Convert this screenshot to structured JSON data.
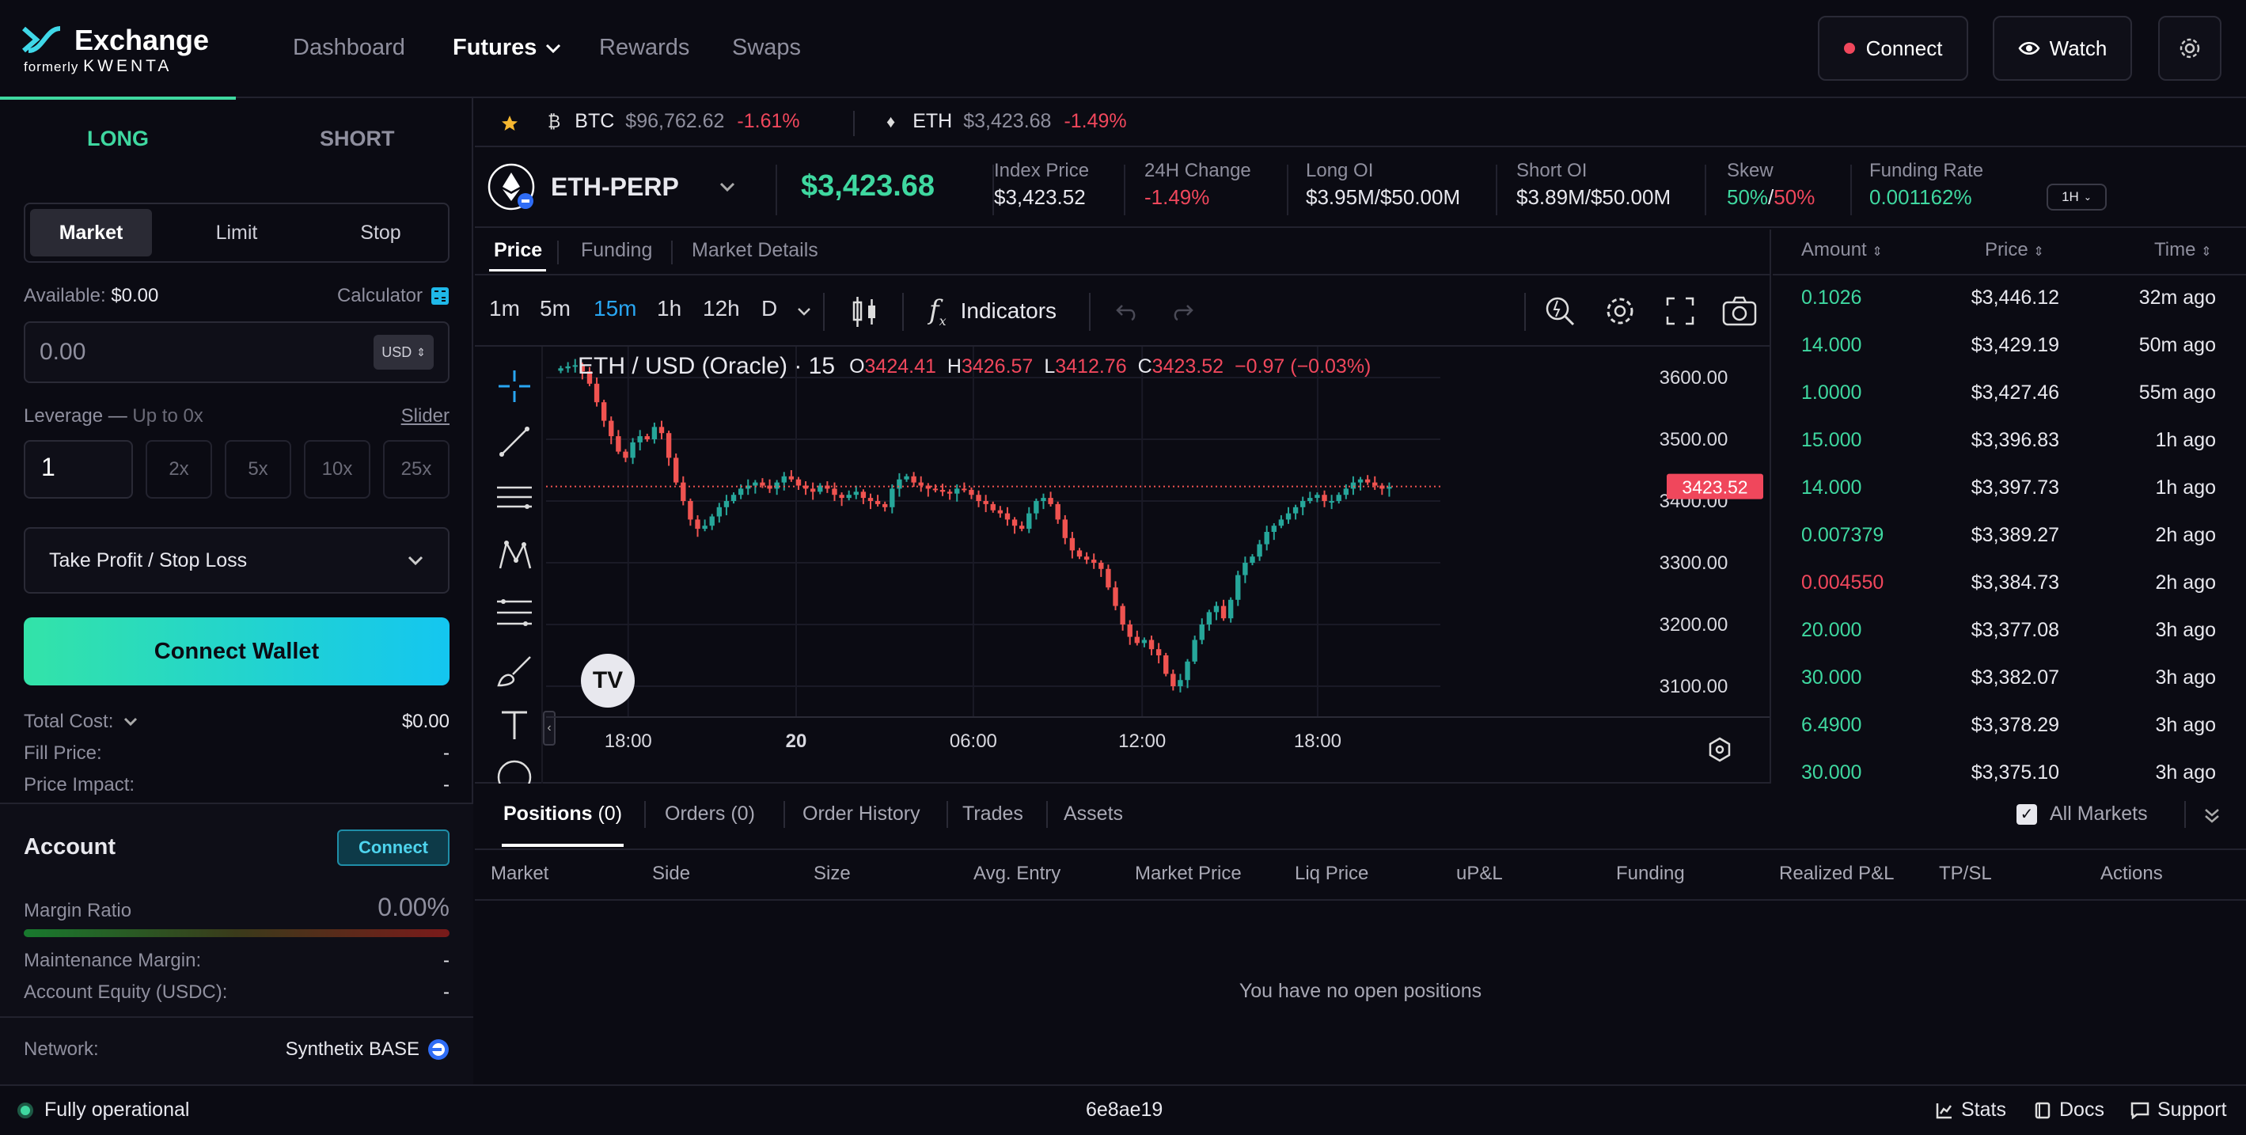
{
  "header": {
    "logo_text": "Exchange",
    "logo_sub_prefix": "formerly",
    "logo_sub_brand": "KWENTA",
    "nav": [
      "Dashboard",
      "Futures",
      "Rewards",
      "Swaps"
    ],
    "connect_label": "Connect",
    "watch_label": "Watch"
  },
  "left_panel": {
    "tab_long": "LONG",
    "tab_short": "SHORT",
    "order_types": [
      "Market",
      "Limit",
      "Stop"
    ],
    "available_label": "Available:",
    "available_value": "$0.00",
    "calculator_label": "Calculator",
    "amount_placeholder": "0.00",
    "currency": "USD",
    "leverage_label": "Leverage",
    "leverage_sep": "—",
    "leverage_hint": "Up to 0x",
    "slider_link": "Slider",
    "leverage_value": "1",
    "leverage_presets": [
      "2x",
      "5x",
      "10x",
      "25x"
    ],
    "tpsl_label": "Take Profit / Stop Loss",
    "connect_wallet": "Connect Wallet",
    "total_cost_label": "Total Cost:",
    "total_cost_value": "$0.00",
    "fill_price_label": "Fill Price:",
    "fill_price_value": "-",
    "price_impact_label": "Price Impact:",
    "price_impact_value": "-",
    "account_title": "Account",
    "account_connect": "Connect",
    "margin_ratio_label": "Margin Ratio",
    "margin_ratio_value": "0.00%",
    "maint_margin_label": "Maintenance Margin:",
    "maint_margin_value": "-",
    "account_equity_label": "Account Equity (USDC):",
    "account_equity_value": "-",
    "network_label": "Network:",
    "network_value": "Synthetix BASE"
  },
  "strip": {
    "items": [
      {
        "symbol": "BTC",
        "price": "$96,762.62",
        "change": "-1.61%"
      },
      {
        "symbol": "ETH",
        "price": "$3,423.68",
        "change": "-1.49%"
      }
    ]
  },
  "market": {
    "name": "ETH-PERP",
    "price": "$3,423.68",
    "stats": [
      {
        "label": "Index Price",
        "value": "$3,423.52"
      },
      {
        "label": "24H Change",
        "value": "-1.49%"
      },
      {
        "label": "Long OI",
        "value": "$3.95M/$50.00M"
      },
      {
        "label": "Short OI",
        "value": "$3.89M/$50.00M"
      }
    ],
    "skew_label": "Skew",
    "skew_long": "50%",
    "skew_sep": "/",
    "skew_short": "50%",
    "funding_label": "Funding Rate",
    "funding_value": "0.001162%",
    "funding_period": "1H"
  },
  "chart_tabs": [
    "Price",
    "Funding",
    "Market Details"
  ],
  "toolbar": {
    "timeframes": [
      "1m",
      "5m",
      "15m",
      "1h",
      "12h",
      "D"
    ],
    "indicators": "Indicators"
  },
  "chart_data": {
    "type": "candlestick",
    "title": "ETH / USD (Oracle) · 15",
    "ohlc_o_label": "O",
    "ohlc_o": "3424.41",
    "ohlc_h_label": "H",
    "ohlc_h": "3426.57",
    "ohlc_l_label": "L",
    "ohlc_l": "3412.76",
    "ohlc_c_label": "C",
    "ohlc_c": "3423.52",
    "ohlc_change": "−0.97 (−0.03%)",
    "y_ticks": [
      "3600.00",
      "3500.00",
      "3400.00",
      "3300.00",
      "3200.00",
      "3100.00"
    ],
    "y_range": [
      3050,
      3650
    ],
    "x_ticks": [
      "18:00",
      "20",
      "06:00",
      "12:00",
      "18:00"
    ],
    "last_price": 3423.52,
    "last_price_label": "3423.52",
    "close_series": [
      3615,
      3618,
      3620,
      3610,
      3590,
      3560,
      3530,
      3505,
      3480,
      3470,
      3495,
      3505,
      3500,
      3520,
      3510,
      3470,
      3430,
      3400,
      3370,
      3355,
      3360,
      3375,
      3390,
      3400,
      3410,
      3420,
      3425,
      3430,
      3425,
      3420,
      3430,
      3440,
      3435,
      3425,
      3420,
      3415,
      3425,
      3420,
      3410,
      3405,
      3410,
      3415,
      3405,
      3400,
      3395,
      3390,
      3420,
      3435,
      3440,
      3430,
      3425,
      3420,
      3418,
      3415,
      3412,
      3420,
      3418,
      3410,
      3400,
      3395,
      3385,
      3380,
      3370,
      3360,
      3355,
      3380,
      3400,
      3405,
      3395,
      3370,
      3340,
      3320,
      3310,
      3305,
      3300,
      3290,
      3260,
      3230,
      3200,
      3180,
      3170,
      3175,
      3160,
      3150,
      3120,
      3100,
      3110,
      3140,
      3175,
      3200,
      3220,
      3230,
      3210,
      3240,
      3280,
      3300,
      3310,
      3330,
      3350,
      3360,
      3370,
      3380,
      3390,
      3400,
      3405,
      3410,
      3400,
      3400,
      3410,
      3420,
      3430,
      3435,
      3430,
      3425,
      3420,
      3423
    ]
  },
  "trades": {
    "headers": [
      "Amount",
      "Price",
      "Time"
    ],
    "rows": [
      {
        "amount": "0.1026",
        "price": "$3,446.12",
        "time": "32m ago",
        "side": "buy"
      },
      {
        "amount": "14.000",
        "price": "$3,429.19",
        "time": "50m ago",
        "side": "buy"
      },
      {
        "amount": "1.0000",
        "price": "$3,427.46",
        "time": "55m ago",
        "side": "buy"
      },
      {
        "amount": "15.000",
        "price": "$3,396.83",
        "time": "1h ago",
        "side": "buy"
      },
      {
        "amount": "14.000",
        "price": "$3,397.73",
        "time": "1h ago",
        "side": "buy"
      },
      {
        "amount": "0.007379",
        "price": "$3,389.27",
        "time": "2h ago",
        "side": "buy"
      },
      {
        "amount": "0.004550",
        "price": "$3,384.73",
        "time": "2h ago",
        "side": "sell"
      },
      {
        "amount": "20.000",
        "price": "$3,377.08",
        "time": "3h ago",
        "side": "buy"
      },
      {
        "amount": "30.000",
        "price": "$3,382.07",
        "time": "3h ago",
        "side": "buy"
      },
      {
        "amount": "6.4900",
        "price": "$3,378.29",
        "time": "3h ago",
        "side": "buy"
      },
      {
        "amount": "30.000",
        "price": "$3,375.10",
        "time": "3h ago",
        "side": "buy"
      }
    ]
  },
  "positions": {
    "tabs": [
      {
        "label": "Positions",
        "count": "(0)"
      },
      {
        "label": "Orders",
        "count": "(0)"
      },
      {
        "label": "Order History",
        "count": ""
      },
      {
        "label": "Trades",
        "count": ""
      },
      {
        "label": "Assets",
        "count": ""
      }
    ],
    "all_markets": "All Markets",
    "columns": [
      "Market",
      "Side",
      "Size",
      "Avg. Entry",
      "Market Price",
      "Liq Price",
      "uP&L",
      "Funding",
      "Realized P&L",
      "TP/SL",
      "Actions"
    ],
    "empty": "You have no open positions"
  },
  "footer": {
    "status": "Fully operational",
    "build": "6e8ae19",
    "stats": "Stats",
    "docs": "Docs",
    "support": "Support"
  },
  "colors": {
    "accent_green": "#3fd8a0",
    "red": "#f0475c",
    "cyan": "#1fb8e8",
    "bg": "#0b0b13"
  }
}
